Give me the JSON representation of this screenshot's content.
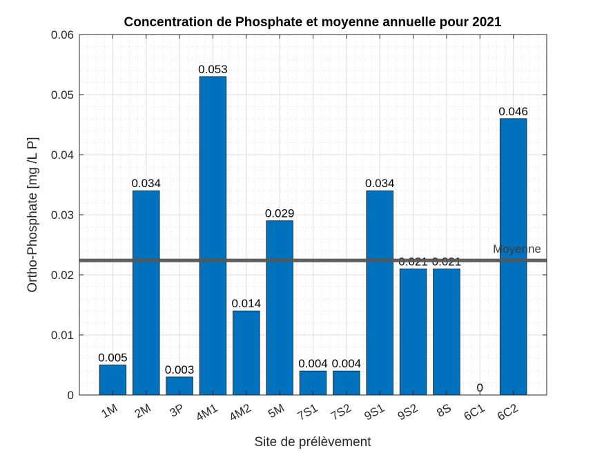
{
  "chart_data": {
    "type": "bar",
    "title": "Concentration de Phosphate et moyenne annuelle pour 2021",
    "xlabel": "Site de prélèvement",
    "ylabel": "Ortho-Phosphate [mg /L P]",
    "categories": [
      "1M",
      "2M",
      "3P",
      "4M1",
      "4M2",
      "5M",
      "7S1",
      "7S2",
      "9S1",
      "9S2",
      "8S",
      "6C1",
      "6C2"
    ],
    "values": [
      0.005,
      0.034,
      0.003,
      0.053,
      0.014,
      0.029,
      0.004,
      0.004,
      0.034,
      0.021,
      0.021,
      0,
      0.046
    ],
    "data_labels": [
      "0.005",
      "0.034",
      "0.003",
      "0.053",
      "0.014",
      "0.029",
      "0.004",
      "0.004",
      "0.034",
      "0.021",
      "0.021",
      "0",
      "0.046"
    ],
    "ylim": [
      0,
      0.06
    ],
    "yticks": [
      0,
      0.01,
      0.02,
      0.03,
      0.04,
      0.05,
      0.06
    ],
    "ytick_labels": [
      "0",
      "0.01",
      "0.02",
      "0.03",
      "0.04",
      "0.05",
      "0.06"
    ],
    "grid": true,
    "minor_grid": true,
    "bar_color": "#0072BD",
    "reference_line": {
      "label": "Moyenne",
      "value": 0.0224,
      "color": "#555555"
    }
  }
}
